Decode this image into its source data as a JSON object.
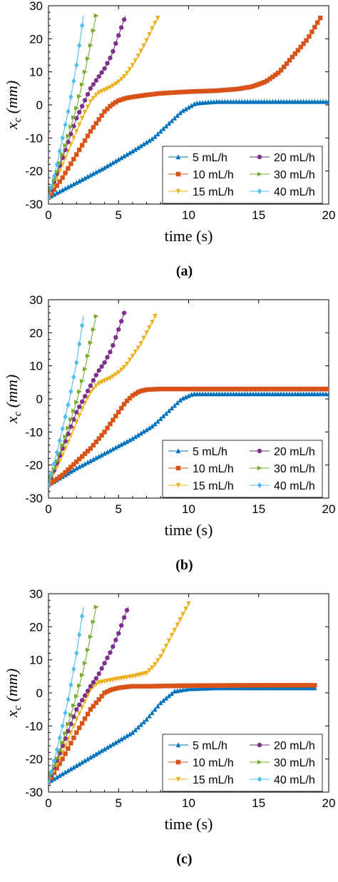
{
  "chart_data": [
    {
      "type": "line",
      "caption": "(a)",
      "xlabel": "time (s)",
      "ylabel_main": "x",
      "ylabel_sub": "c",
      "ylabel_unit": "(mm)",
      "xlim": [
        0,
        20
      ],
      "ylim": [
        -30,
        30
      ],
      "xticks": [
        0,
        5,
        10,
        15,
        20
      ],
      "yticks": [
        -30,
        -20,
        -10,
        0,
        10,
        20,
        30
      ],
      "legend_position": "lower-right",
      "series": [
        {
          "name": "5 mL/h",
          "color": "#0072BD",
          "marker": "triangle-up",
          "x": [
            0,
            2,
            4,
            6,
            7.5,
            8.5,
            9.5,
            10.5,
            12,
            15,
            20
          ],
          "y": [
            -28,
            -23.5,
            -19,
            -14,
            -10,
            -6,
            -2,
            0.5,
            1,
            1,
            1
          ]
        },
        {
          "name": "10 mL/h",
          "color": "#D95319",
          "marker": "square",
          "x": [
            0,
            1,
            2,
            3,
            4,
            4.5,
            5,
            5.5,
            6,
            7,
            8,
            10,
            12,
            13.5,
            14.5,
            15.5,
            16.5,
            17.5,
            18.5,
            19.5
          ],
          "y": [
            -28,
            -22,
            -15,
            -8,
            -2,
            0,
            1.3,
            2,
            2.4,
            3,
            3.5,
            4,
            4.3,
            4.8,
            5.5,
            7,
            10,
            15,
            20,
            27
          ]
        },
        {
          "name": "15 mL/h",
          "color": "#EDB120",
          "marker": "triangle-down",
          "x": [
            0,
            1,
            2,
            2.5,
            3,
            3.5,
            4,
            4.5,
            5,
            5.5,
            6,
            6.5,
            7,
            7.5,
            7.9
          ],
          "y": [
            -28,
            -18,
            -8,
            -3,
            1,
            3.5,
            4.5,
            5.5,
            7,
            9,
            12,
            15.5,
            19.5,
            24,
            27
          ]
        },
        {
          "name": "20 mL/h",
          "color": "#7E2F8E",
          "marker": "circle",
          "x": [
            0,
            1,
            2,
            3,
            3.5,
            4,
            4.5,
            5,
            5.5
          ],
          "y": [
            -28,
            -16,
            -4,
            5,
            8,
            11,
            15,
            21,
            27
          ]
        },
        {
          "name": "30 mL/h",
          "color": "#77AC30",
          "marker": "triangle-right",
          "x": [
            0,
            1,
            2,
            2.5,
            3,
            3.4
          ],
          "y": [
            -28,
            -15,
            -1,
            8,
            18,
            27
          ]
        },
        {
          "name": "40 mL/h",
          "color": "#4DBEEE",
          "marker": "diamond",
          "x": [
            0,
            0.5,
            1,
            1.5,
            2,
            2.5
          ],
          "y": [
            -28,
            -20,
            -10,
            0,
            12,
            27
          ]
        }
      ]
    },
    {
      "type": "line",
      "caption": "(b)",
      "xlabel": "time (s)",
      "ylabel_main": "x",
      "ylabel_sub": "c",
      "ylabel_unit": "(mm)",
      "xlim": [
        0,
        20
      ],
      "ylim": [
        -30,
        30
      ],
      "xticks": [
        0,
        5,
        10,
        15,
        20
      ],
      "yticks": [
        -30,
        -20,
        -10,
        0,
        10,
        20,
        30
      ],
      "legend_position": "lower-right",
      "series": [
        {
          "name": "5 mL/h",
          "color": "#0072BD",
          "marker": "triangle-up",
          "x": [
            0,
            2,
            4,
            6,
            7.5,
            8.5,
            9.5,
            10.3,
            12,
            15,
            20
          ],
          "y": [
            -26,
            -21,
            -16.5,
            -12,
            -8,
            -4,
            0,
            1.5,
            1.5,
            1.5,
            1.5
          ]
        },
        {
          "name": "10 mL/h",
          "color": "#D95319",
          "marker": "square",
          "x": [
            0,
            1,
            2,
            3,
            4,
            5,
            5.5,
            6,
            6.5,
            7,
            8,
            10,
            15,
            20
          ],
          "y": [
            -26,
            -23,
            -19,
            -15,
            -10,
            -4,
            -1,
            1,
            2.3,
            2.8,
            3,
            3,
            3,
            3
          ]
        },
        {
          "name": "15 mL/h",
          "color": "#EDB120",
          "marker": "triangle-down",
          "x": [
            0,
            1,
            2,
            2.5,
            3,
            3.5,
            4,
            4.5,
            5,
            5.5,
            6,
            6.5,
            7,
            7.5,
            7.7
          ],
          "y": [
            -26,
            -17,
            -7,
            -2,
            2,
            4.5,
            5.5,
            6.5,
            8,
            10,
            13,
            16,
            20,
            24,
            26
          ]
        },
        {
          "name": "20 mL/h",
          "color": "#7E2F8E",
          "marker": "circle",
          "x": [
            0,
            1,
            2,
            3,
            3.5,
            4,
            4.5,
            5,
            5.4
          ],
          "y": [
            -26,
            -15,
            -4,
            4,
            8,
            11,
            15,
            21,
            26
          ]
        },
        {
          "name": "30 mL/h",
          "color": "#77AC30",
          "marker": "triangle-right",
          "x": [
            0,
            1,
            2,
            2.5,
            3,
            3.4
          ],
          "y": [
            -26,
            -14,
            -1,
            7,
            17,
            25
          ]
        },
        {
          "name": "40 mL/h",
          "color": "#4DBEEE",
          "marker": "diamond",
          "x": [
            0,
            0.5,
            1,
            1.5,
            2,
            2.5
          ],
          "y": [
            -26,
            -18,
            -9,
            0,
            11,
            25
          ]
        }
      ]
    },
    {
      "type": "line",
      "caption": "(c)",
      "xlabel": "time (s)",
      "ylabel_main": "x",
      "ylabel_sub": "c",
      "ylabel_unit": "(mm)",
      "xlim": [
        0,
        20
      ],
      "ylim": [
        -30,
        30
      ],
      "xticks": [
        0,
        5,
        10,
        15,
        20
      ],
      "yticks": [
        -30,
        -20,
        -10,
        0,
        10,
        20,
        30
      ],
      "legend_position": "lower-right",
      "series": [
        {
          "name": "5 mL/h",
          "color": "#0072BD",
          "marker": "triangle-up",
          "x": [
            0,
            2,
            4,
            6,
            7,
            8,
            9,
            10,
            12,
            15,
            19
          ],
          "y": [
            -27,
            -22,
            -17,
            -12,
            -8,
            -3,
            0.5,
            1.2,
            1.5,
            1.5,
            1.5
          ]
        },
        {
          "name": "10 mL/h",
          "color": "#D95319",
          "marker": "square",
          "x": [
            0,
            1,
            2,
            3,
            4,
            4.5,
            5,
            5.5,
            6,
            7,
            10,
            15,
            19
          ],
          "y": [
            -27,
            -20,
            -12,
            -5,
            0,
            1,
            1.5,
            1.8,
            2,
            2,
            2.2,
            2.3,
            2.3
          ]
        },
        {
          "name": "15 mL/h",
          "color": "#EDB120",
          "marker": "triangle-down",
          "x": [
            0,
            1,
            2,
            3,
            3.5,
            4,
            5,
            6,
            7,
            7.5,
            8,
            8.5,
            9,
            9.5,
            10
          ],
          "y": [
            -27,
            -18,
            -8,
            1,
            3,
            3.5,
            4.3,
            5,
            6,
            8,
            11,
            15,
            19,
            23,
            27
          ]
        },
        {
          "name": "20 mL/h",
          "color": "#7E2F8E",
          "marker": "circle",
          "x": [
            0,
            1,
            2,
            3,
            3.5,
            4,
            4.5,
            5,
            5.5,
            5.7
          ],
          "y": [
            -27,
            -16,
            -5,
            2,
            5,
            9,
            13,
            18,
            24,
            26
          ]
        },
        {
          "name": "30 mL/h",
          "color": "#77AC30",
          "marker": "triangle-right",
          "x": [
            0,
            1,
            2,
            2.5,
            3,
            3.4
          ],
          "y": [
            -27,
            -15,
            -1,
            7,
            17,
            26
          ]
        },
        {
          "name": "40 mL/h",
          "color": "#4DBEEE",
          "marker": "diamond",
          "x": [
            0,
            0.5,
            1,
            1.5,
            2,
            2.5
          ],
          "y": [
            -27,
            -19,
            -10,
            0,
            12,
            26
          ]
        }
      ]
    }
  ]
}
